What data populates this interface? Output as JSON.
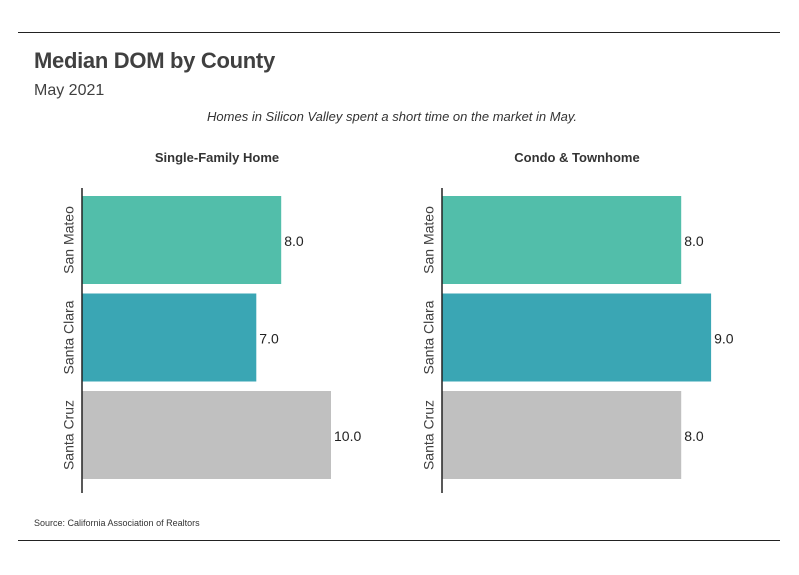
{
  "header": {
    "title": "Median DOM by County",
    "subtitle": "May 2021",
    "caption": "Homes in Silicon Valley spent a short time on the market in May."
  },
  "footer": {
    "source": "Source:  California Association of Realtors"
  },
  "colors": {
    "san_mateo": "#52BEAA",
    "santa_clara": "#3AA6B4",
    "santa_cruz": "#C0C0C0",
    "axis": "#222222"
  },
  "chart_data": [
    {
      "type": "bar",
      "orientation": "horizontal",
      "title": "Single-Family Home",
      "categories": [
        "San Mateo",
        "Santa Clara",
        "Santa Cruz"
      ],
      "values": [
        8.0,
        7.0,
        10.0
      ],
      "value_labels": [
        "8.0",
        "7.0",
        "10.0"
      ],
      "xlim": [
        0,
        10
      ],
      "grid": false
    },
    {
      "type": "bar",
      "orientation": "horizontal",
      "title": "Condo & Townhome",
      "categories": [
        "San Mateo",
        "Santa Clara",
        "Santa Cruz"
      ],
      "values": [
        8.0,
        9.0,
        8.0
      ],
      "value_labels": [
        "8.0",
        "9.0",
        "8.0"
      ],
      "xlim": [
        0,
        10
      ],
      "grid": false
    }
  ]
}
